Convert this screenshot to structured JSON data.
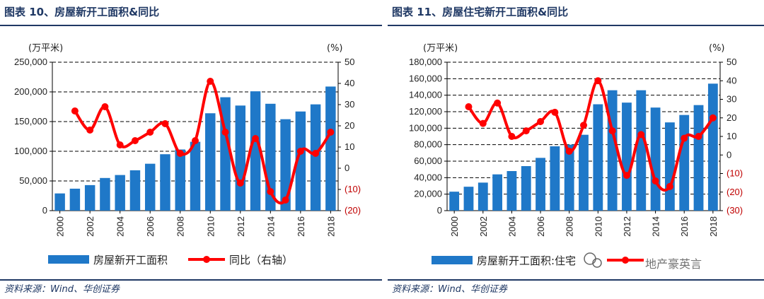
{
  "colors": {
    "bar": "#1f78c8",
    "line": "#ff0000",
    "title": "#1f3864",
    "negative": "#c00000"
  },
  "watermark": "地产豪英言",
  "charts": [
    {
      "title": "图表 10、房屋新开工面积&同比",
      "source": "资料来源：Wind、华创证券",
      "unit_left": "(万平米)",
      "unit_right": "(%)",
      "y_ticks": [
        "250,000",
        "200,000",
        "150,000",
        "100,000",
        "50,000",
        "0"
      ],
      "y2_ticks": [
        "50",
        "40",
        "30",
        "20",
        "10",
        "0",
        "(10)",
        "(20)"
      ],
      "x_ticks": [
        "2000",
        "2002",
        "2004",
        "2006",
        "2008",
        "2010",
        "2012",
        "2014",
        "2016",
        "2018"
      ],
      "legend_bar": "房屋新开工面积",
      "legend_line": "同比（右轴）"
    },
    {
      "title": "图表 11、房屋住宅新开工面积&同比",
      "source": "资料来源：Wind、华创证券",
      "unit_left": "(万平米)",
      "unit_right": "(%)",
      "y_ticks": [
        "180,000",
        "160,000",
        "140,000",
        "120,000",
        "100,000",
        "80,000",
        "60,000",
        "40,000",
        "20,000",
        "0"
      ],
      "y2_ticks": [
        "50",
        "40",
        "30",
        "20",
        "10",
        "0",
        "(10)",
        "(20)",
        "(30)"
      ],
      "x_ticks": [
        "2000",
        "2002",
        "2004",
        "2006",
        "2008",
        "2010",
        "2012",
        "2014",
        "2016",
        "2018"
      ],
      "legend_bar": "房屋新开工面积:住宅",
      "legend_line": ""
    }
  ],
  "chart_data": [
    {
      "type": "bar+line",
      "title": "图表 10、房屋新开工面积&同比",
      "categories": [
        "2000",
        "2001",
        "2002",
        "2003",
        "2004",
        "2005",
        "2006",
        "2007",
        "2008",
        "2009",
        "2010",
        "2011",
        "2012",
        "2013",
        "2014",
        "2015",
        "2016",
        "2017",
        "2018"
      ],
      "ylim": [
        0,
        250000
      ],
      "y2lim": [
        -20,
        50
      ],
      "series": [
        {
          "name": "房屋新开工面积",
          "type": "bar",
          "axis": "left",
          "values": [
            29000,
            37000,
            43000,
            55000,
            60000,
            68000,
            79000,
            95000,
            103000,
            116000,
            164000,
            191000,
            177000,
            201000,
            180000,
            154000,
            167000,
            179000,
            209000
          ]
        },
        {
          "name": "同比（右轴）",
          "type": "line",
          "axis": "right",
          "values": [
            null,
            27,
            18,
            29,
            11,
            13,
            17,
            21,
            7,
            13,
            41,
            17,
            -7,
            14,
            -11,
            -15,
            8,
            7,
            17
          ]
        }
      ]
    },
    {
      "type": "bar+line",
      "title": "图表 11、房屋住宅新开工面积&同比",
      "categories": [
        "2000",
        "2001",
        "2002",
        "2003",
        "2004",
        "2005",
        "2006",
        "2007",
        "2008",
        "2009",
        "2010",
        "2011",
        "2012",
        "2013",
        "2014",
        "2015",
        "2016",
        "2017",
        "2018"
      ],
      "ylim": [
        0,
        180000
      ],
      "y2lim": [
        -30,
        50
      ],
      "series": [
        {
          "name": "房屋新开工面积:住宅",
          "type": "bar",
          "axis": "left",
          "values": [
            23000,
            29000,
            34000,
            44000,
            48000,
            54000,
            64000,
            78000,
            80000,
            92000,
            129000,
            146000,
            131000,
            146000,
            125000,
            107000,
            116000,
            128000,
            154000
          ]
        },
        {
          "name": "",
          "type": "line",
          "axis": "right",
          "values": [
            null,
            26,
            17,
            28,
            10,
            13,
            18,
            23,
            2,
            16,
            40,
            13,
            -11,
            11,
            -14,
            -17,
            9,
            10,
            20
          ]
        }
      ]
    }
  ]
}
